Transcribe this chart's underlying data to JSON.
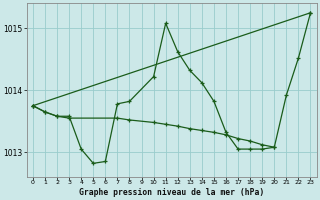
{
  "title": "Graphe pression niveau de la mer (hPa)",
  "bg_color": "#cce8e8",
  "grid_color": "#99cccc",
  "line_color": "#1a5c1a",
  "marker": "+",
  "ylim": [
    1012.6,
    1015.4
  ],
  "yticks": [
    1013,
    1014,
    1015
  ],
  "xlim": [
    -0.5,
    23.5
  ],
  "xticks": [
    0,
    1,
    2,
    3,
    4,
    5,
    6,
    7,
    8,
    9,
    10,
    11,
    12,
    13,
    14,
    15,
    16,
    17,
    18,
    19,
    20,
    21,
    22,
    23
  ],
  "series1_x": [
    0,
    1,
    2,
    3,
    4,
    5,
    6,
    7,
    8,
    10,
    11,
    12,
    13,
    14,
    15,
    16,
    17,
    18,
    19,
    20,
    21,
    22,
    23
  ],
  "series1_y": [
    1013.75,
    1013.65,
    1013.58,
    1013.58,
    1013.05,
    1012.82,
    1012.85,
    1013.78,
    1013.82,
    1014.22,
    1015.08,
    1014.62,
    1014.32,
    1014.12,
    1013.82,
    1013.32,
    1013.05,
    1013.05,
    1013.05,
    1013.08,
    1013.92,
    1014.52,
    1015.25
  ],
  "series2_x": [
    0,
    1,
    2,
    3,
    7,
    8,
    10,
    11,
    12,
    13,
    14,
    15,
    16,
    17,
    18,
    19,
    20
  ],
  "series2_y": [
    1013.75,
    1013.65,
    1013.58,
    1013.55,
    1013.55,
    1013.52,
    1013.48,
    1013.45,
    1013.42,
    1013.38,
    1013.35,
    1013.32,
    1013.28,
    1013.22,
    1013.18,
    1013.12,
    1013.08
  ],
  "series3_x": [
    0,
    23
  ],
  "series3_y": [
    1013.75,
    1015.25
  ]
}
